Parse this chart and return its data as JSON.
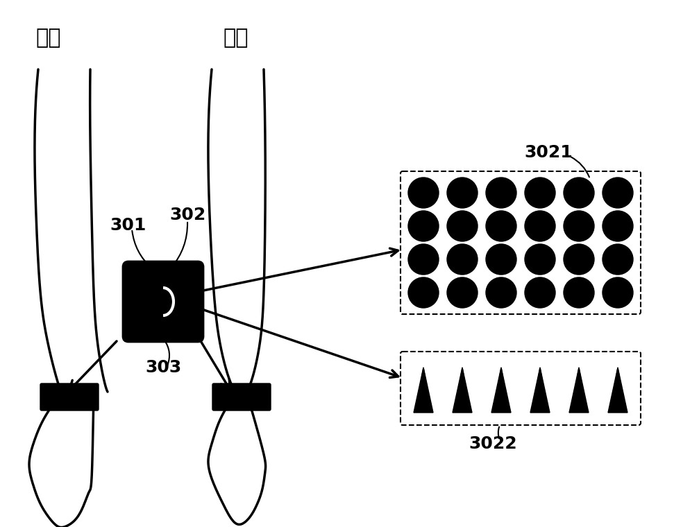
{
  "bg_color": "#ffffff",
  "text_color": "#000000",
  "label_301": "301",
  "label_302": "302",
  "label_303": "303",
  "label_3021": "3021",
  "label_3022": "3022",
  "label_right_arm": "右臂",
  "label_left_arm": "左臂",
  "circle_grid_rows": 4,
  "circle_grid_cols": 6,
  "spike_count": 6,
  "figsize": [
    9.71,
    7.6
  ],
  "dpi": 100
}
